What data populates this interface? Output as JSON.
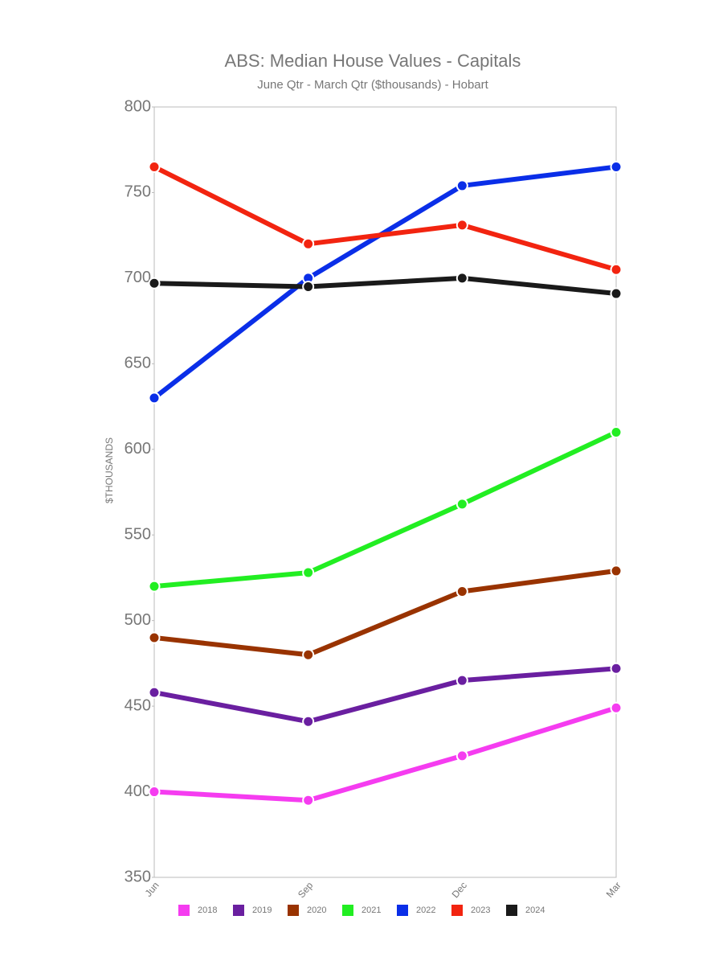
{
  "chart_data": {
    "type": "line",
    "title": "ABS: Median House Values - Capitals",
    "subtitle": "June Qtr - March Qtr ($thousands) - Hobart",
    "y_label": "$THOUSANDS",
    "categories": [
      "Jun",
      "Sep",
      "Dec",
      "Mar"
    ],
    "ylim": [
      350,
      800
    ],
    "yticks": [
      350,
      400,
      450,
      500,
      550,
      600,
      650,
      700,
      750,
      800
    ],
    "grid": false,
    "legend": "bottom",
    "series": [
      {
        "name": "2018",
        "color": "#f53cf0",
        "values": [
          400,
          395,
          421,
          449
        ]
      },
      {
        "name": "2019",
        "color": "#6a1fa0",
        "values": [
          458,
          441,
          465,
          472
        ]
      },
      {
        "name": "2020",
        "color": "#993300",
        "values": [
          490,
          480,
          517,
          529
        ]
      },
      {
        "name": "2021",
        "color": "#22ee22",
        "values": [
          520,
          528,
          568,
          610
        ]
      },
      {
        "name": "2022",
        "color": "#0a2ee8",
        "values": [
          630,
          700,
          754,
          765
        ]
      },
      {
        "name": "2023",
        "color": "#f22410",
        "values": [
          765,
          720,
          731,
          705
        ]
      },
      {
        "name": "2024",
        "color": "#1a1a1a",
        "values": [
          697,
          695,
          700,
          691
        ]
      }
    ]
  }
}
